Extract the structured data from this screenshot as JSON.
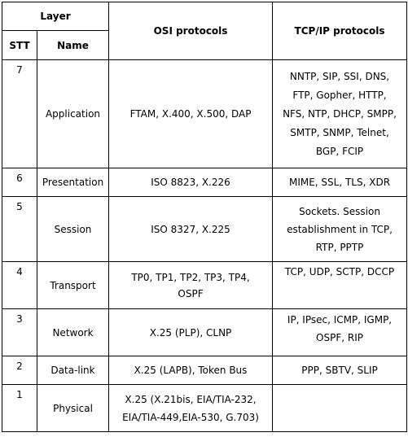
{
  "header": {
    "layer": "Layer",
    "stt": "STT",
    "name": "Name",
    "osi": "OSI protocols",
    "tcpip": "TCP/IP protocols"
  },
  "rows": [
    {
      "stt": "7",
      "name": "Application",
      "osi": "FTAM, X.400, X.500, DAP",
      "tcp": [
        "NNTP, SIP, SSI, DNS,",
        "FTP, Gopher, HTTP,",
        "NFS, NTP, DHCP, SMPP,",
        "SMTP, SNMP, Telnet,",
        "BGP, FCIP"
      ]
    },
    {
      "stt": "6",
      "name": "Presentation",
      "osi": "ISO 8823, X.226",
      "tcp": [
        "MIME, SSL, TLS, XDR"
      ]
    },
    {
      "stt": "5",
      "name": "Session",
      "osi": "ISO 8327, X.225",
      "tcp": [
        "Sockets. Session",
        "establishment in TCP,",
        "RTP, PPTP"
      ]
    },
    {
      "stt": "4",
      "name": "Transport",
      "osi": "TP0, TP1, TP2, TP3, TP4,",
      "osi2": "OSPF",
      "tcp": [
        "TCP, UDP, SCTP, DCCP"
      ]
    },
    {
      "stt": "3",
      "name": "Network",
      "osi": "X.25 (PLP), CLNP",
      "tcp": [
        "IP, IPsec, ICMP, IGMP,",
        "OSPF, RIP"
      ]
    },
    {
      "stt": "2",
      "name": "Data-link",
      "osi": "X.25 (LAPB), Token Bus",
      "tcp": [
        "PPP, SBTV, SLIP"
      ]
    },
    {
      "stt": "1",
      "name": "Physical",
      "osi": "X.25 (X.21bis, EIA/TIA-232,",
      "osi2": "EIA/TIA-449,EIA-530, G.703)",
      "tcp": []
    }
  ]
}
